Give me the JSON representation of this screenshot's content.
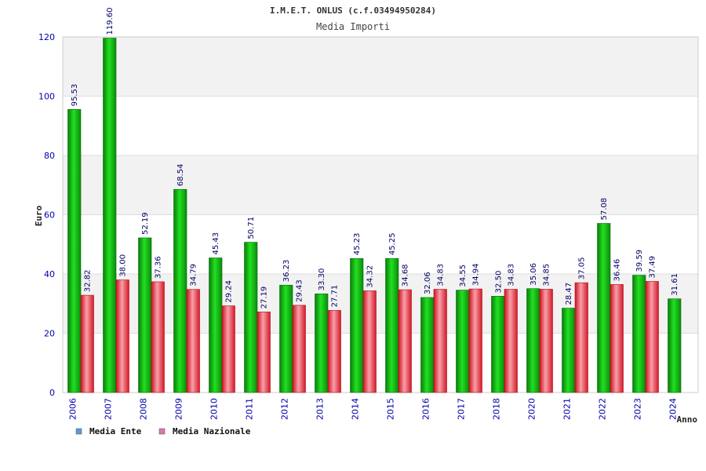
{
  "chart_data": {
    "type": "bar",
    "title": "I.M.E.T. ONLUS (c.f.03494950284)",
    "subtitle": "Media Importi",
    "ylabel": "Euro",
    "xlabel": "Anno",
    "ylim": [
      0,
      120
    ],
    "yticks": [
      0,
      20,
      40,
      60,
      80,
      100,
      120
    ],
    "grid": true,
    "legend_position": "bottom-left",
    "categories": [
      "2006",
      "2007",
      "2008",
      "2009",
      "2010",
      "2011",
      "2012",
      "2013",
      "2014",
      "2015",
      "2016",
      "2017",
      "2018",
      "2020",
      "2021",
      "2022",
      "2023",
      "2024"
    ],
    "series": [
      {
        "name": "Media Ente",
        "color": "#22b422",
        "legend_color": "#5b9bd5",
        "values": [
          95.53,
          119.6,
          52.19,
          68.54,
          45.43,
          50.71,
          36.23,
          33.3,
          45.23,
          45.25,
          32.06,
          34.55,
          32.5,
          35.06,
          28.47,
          57.08,
          39.59,
          31.61
        ],
        "labels": [
          "95.53",
          "119.60",
          "52.19",
          "68.54",
          "45.43",
          "50.71",
          "36.23",
          "33.30",
          "45.23",
          "45.25",
          "32.06",
          "34.55",
          "32.50",
          "35.06",
          "28.47",
          "57.08",
          "39.59",
          "31.61"
        ]
      },
      {
        "name": "Media Nazionale",
        "color": "#e8323c",
        "legend_color": "#d97aa6",
        "values": [
          32.82,
          38.0,
          37.36,
          34.79,
          29.24,
          27.19,
          29.43,
          27.71,
          34.32,
          34.68,
          34.83,
          34.94,
          34.83,
          34.85,
          37.05,
          36.46,
          37.49,
          null
        ],
        "labels": [
          "32.82",
          "38.00",
          "37.36",
          "34.79",
          "29.24",
          "27.19",
          "29.43",
          "27.71",
          "34.32",
          "34.68",
          "34.83",
          "34.94",
          "34.83",
          "34.85",
          "37.05",
          "36.46",
          "37.49",
          null
        ]
      }
    ]
  }
}
